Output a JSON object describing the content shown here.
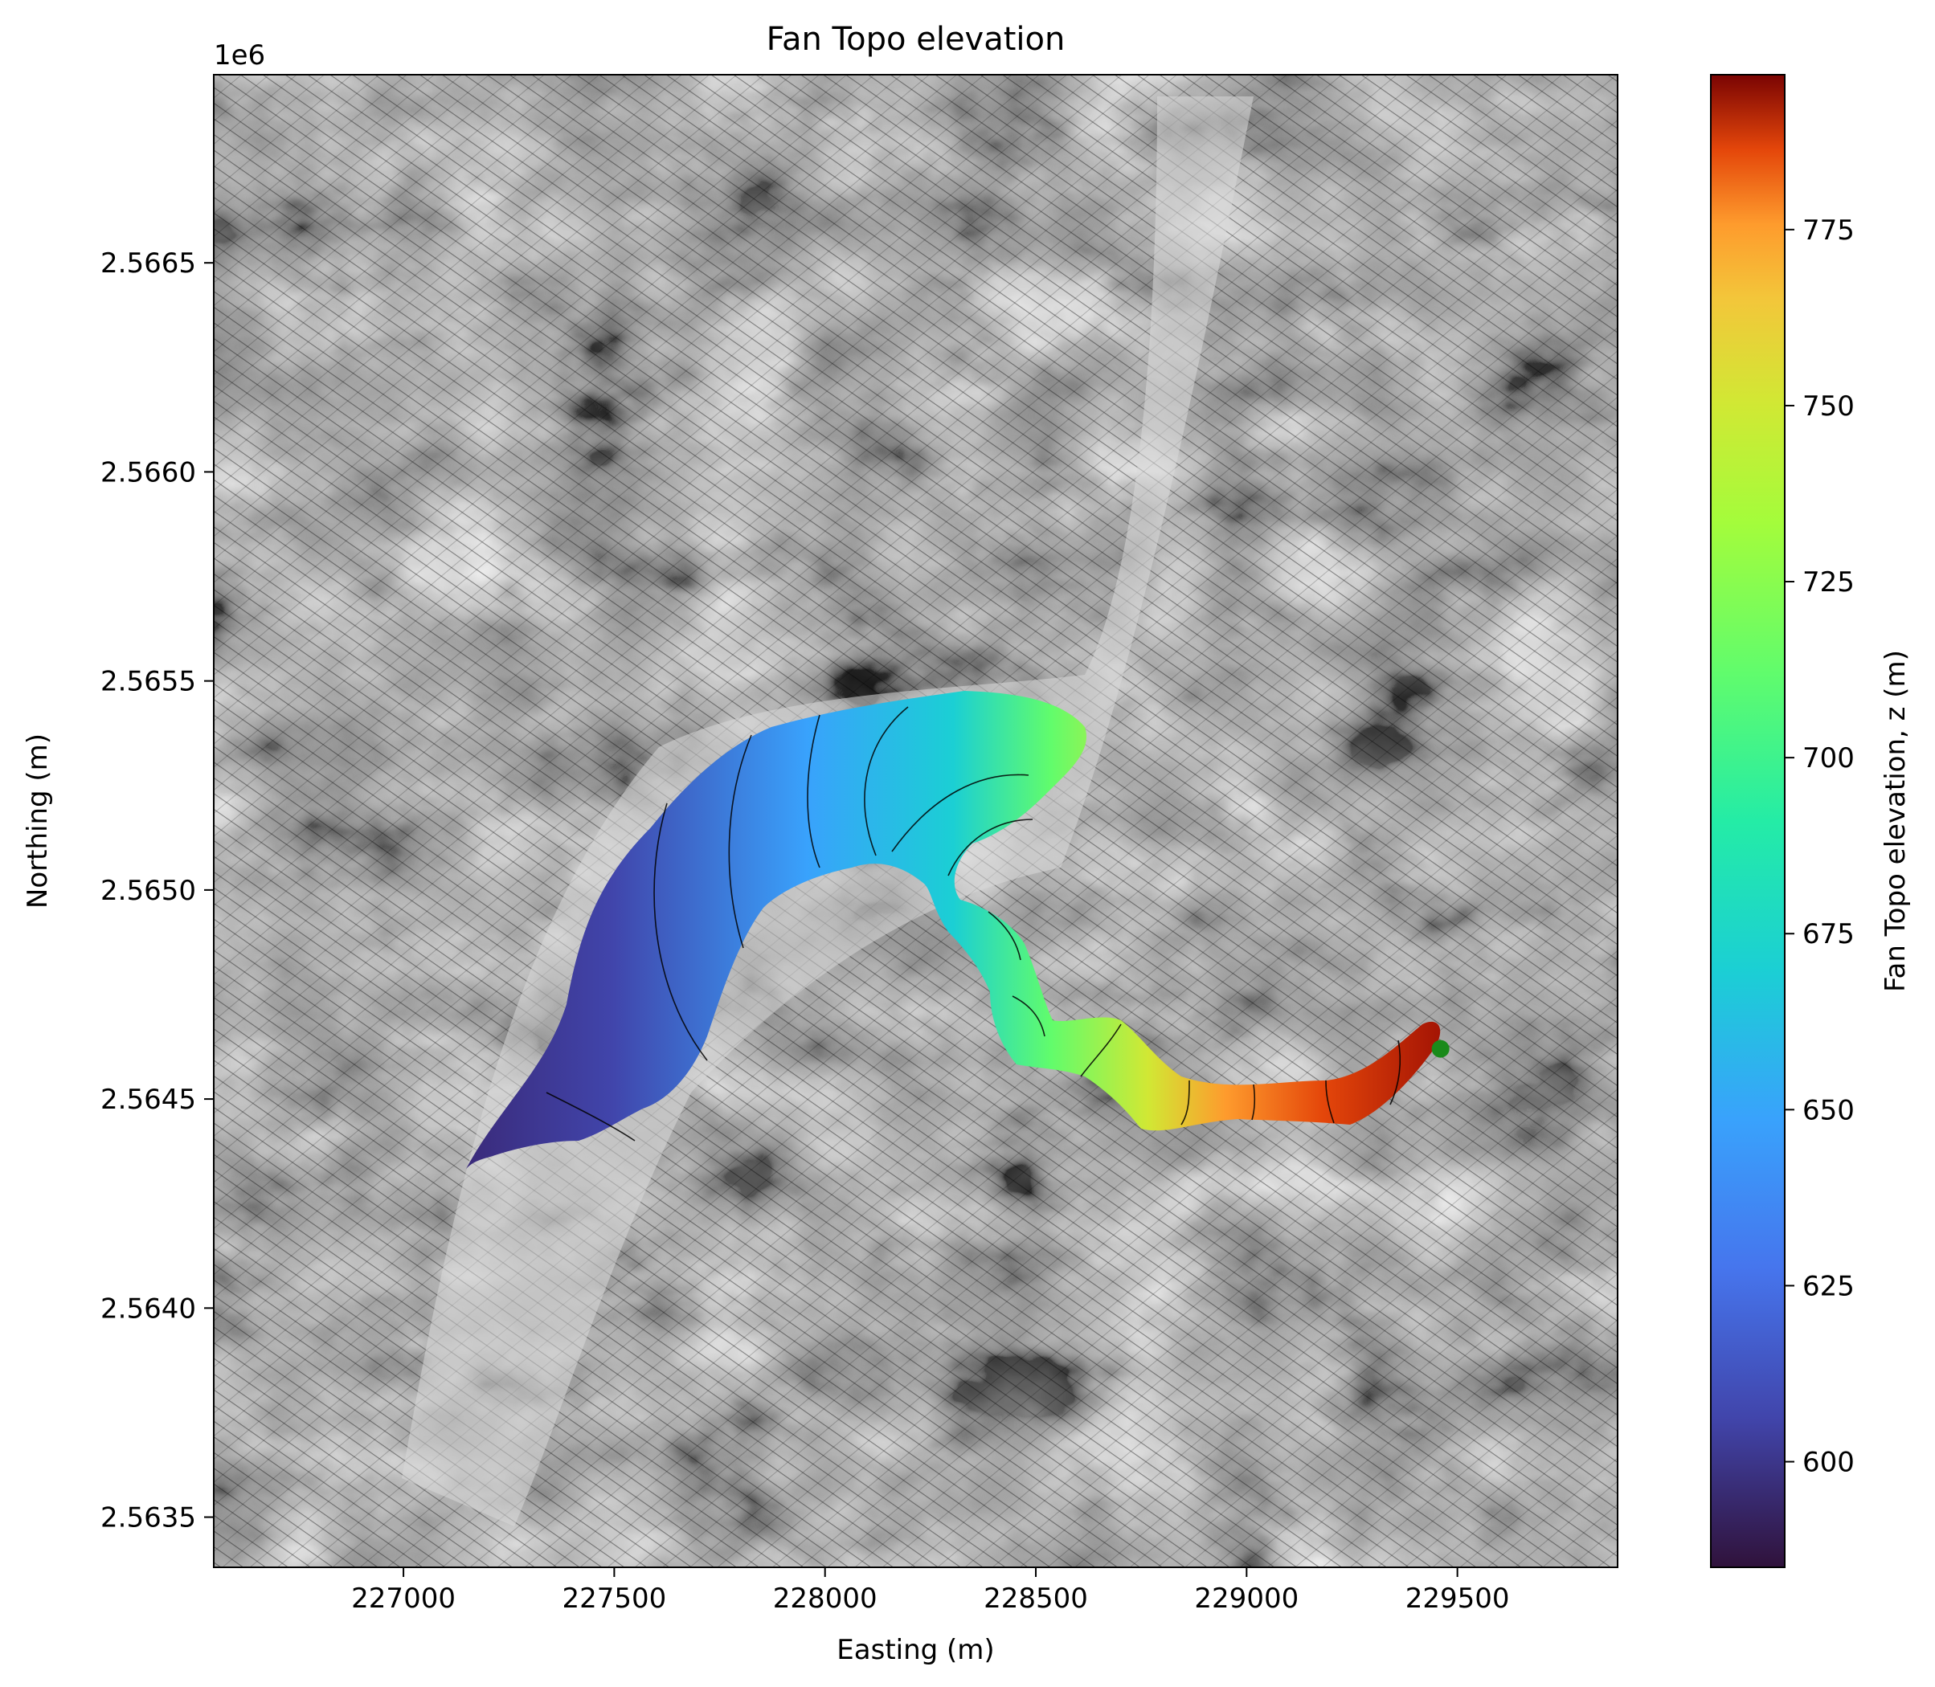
{
  "chart_data": {
    "type": "heatmap",
    "title": "Fan Topo elevation",
    "xlabel": "Easting (m)",
    "ylabel": "Northing (m)",
    "y_offset_label": "1e6",
    "xlim": [
      226550,
      229880
    ],
    "ylim": [
      2.56338,
      2.56695
    ],
    "x_ticks": [
      227000,
      227500,
      228000,
      228500,
      229000,
      229500
    ],
    "x_tick_labels": [
      "227000",
      "227500",
      "228000",
      "228500",
      "229000",
      "229500"
    ],
    "y_ticks": [
      2.5635,
      2.564,
      2.5645,
      2.565,
      2.5655,
      2.566,
      2.5665
    ],
    "y_tick_labels": [
      "2.5635",
      "2.5640",
      "2.5645",
      "2.5650",
      "2.5655",
      "2.5660",
      "2.5665"
    ],
    "colorbar": {
      "label": "Fan Topo elevation, z (m)",
      "range": [
        585,
        797
      ],
      "ticks": [
        600,
        625,
        650,
        675,
        700,
        725,
        750,
        775
      ],
      "tick_labels": [
        "600",
        "625",
        "650",
        "675",
        "700",
        "725",
        "750",
        "775"
      ],
      "colormap": "turbo"
    },
    "background": "hillshade with elevation contours",
    "apex_marker": {
      "x": 229460,
      "y": 2.56462,
      "color": "#1a8a1a"
    },
    "fan_path": [
      {
        "x": 227300,
        "y": 2.5644,
        "z": 592
      },
      {
        "x": 227500,
        "y": 2.5646,
        "z": 600
      },
      {
        "x": 227750,
        "y": 2.56495,
        "z": 612
      },
      {
        "x": 228000,
        "y": 2.5652,
        "z": 625
      },
      {
        "x": 228250,
        "y": 2.56522,
        "z": 640
      },
      {
        "x": 228420,
        "y": 2.56515,
        "z": 652
      },
      {
        "x": 228500,
        "y": 2.56495,
        "z": 662
      },
      {
        "x": 228450,
        "y": 2.56478,
        "z": 675
      },
      {
        "x": 228600,
        "y": 2.56465,
        "z": 688
      },
      {
        "x": 228750,
        "y": 2.56462,
        "z": 700
      },
      {
        "x": 228900,
        "y": 2.56445,
        "z": 722
      },
      {
        "x": 229050,
        "y": 2.56447,
        "z": 738
      },
      {
        "x": 229200,
        "y": 2.5645,
        "z": 752
      },
      {
        "x": 229350,
        "y": 2.56458,
        "z": 770
      },
      {
        "x": 229460,
        "y": 2.56465,
        "z": 785
      }
    ]
  }
}
